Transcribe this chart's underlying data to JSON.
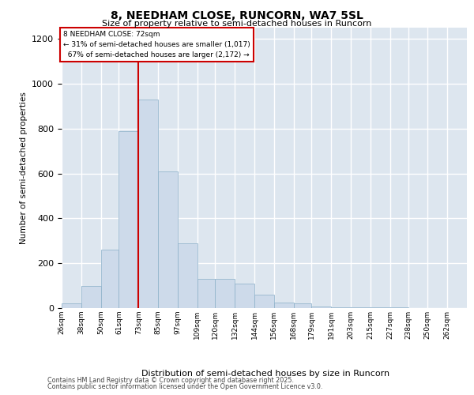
{
  "title1": "8, NEEDHAM CLOSE, RUNCORN, WA7 5SL",
  "title2": "Size of property relative to semi-detached houses in Runcorn",
  "xlabel": "Distribution of semi-detached houses by size in Runcorn",
  "ylabel": "Number of semi-detached properties",
  "property_label": "8 NEEDHAM CLOSE: 72sqm",
  "pct_smaller": 31,
  "count_smaller": 1017,
  "pct_larger": 67,
  "count_larger": 2172,
  "bin_labels": [
    "26sqm",
    "38sqm",
    "50sqm",
    "61sqm",
    "73sqm",
    "85sqm",
    "97sqm",
    "109sqm",
    "120sqm",
    "132sqm",
    "144sqm",
    "156sqm",
    "168sqm",
    "179sqm",
    "191sqm",
    "203sqm",
    "215sqm",
    "227sqm",
    "238sqm",
    "250sqm",
    "262sqm"
  ],
  "bin_edges": [
    26,
    38,
    50,
    61,
    73,
    85,
    97,
    109,
    120,
    132,
    144,
    156,
    168,
    179,
    191,
    203,
    215,
    227,
    238,
    250,
    262,
    274
  ],
  "bar_heights": [
    20,
    100,
    260,
    790,
    930,
    610,
    290,
    130,
    130,
    110,
    60,
    25,
    20,
    8,
    5,
    5,
    3,
    2,
    1,
    0,
    1
  ],
  "bar_color": "#cddaea",
  "bar_edge_color": "#8aafc8",
  "vline_x": 73,
  "vline_color": "#cc0000",
  "bg_color": "#dde6ef",
  "grid_color": "#ffffff",
  "ylim": [
    0,
    1250
  ],
  "yticks": [
    0,
    200,
    400,
    600,
    800,
    1000,
    1200
  ],
  "footer1": "Contains HM Land Registry data © Crown copyright and database right 2025.",
  "footer2": "Contains public sector information licensed under the Open Government Licence v3.0."
}
